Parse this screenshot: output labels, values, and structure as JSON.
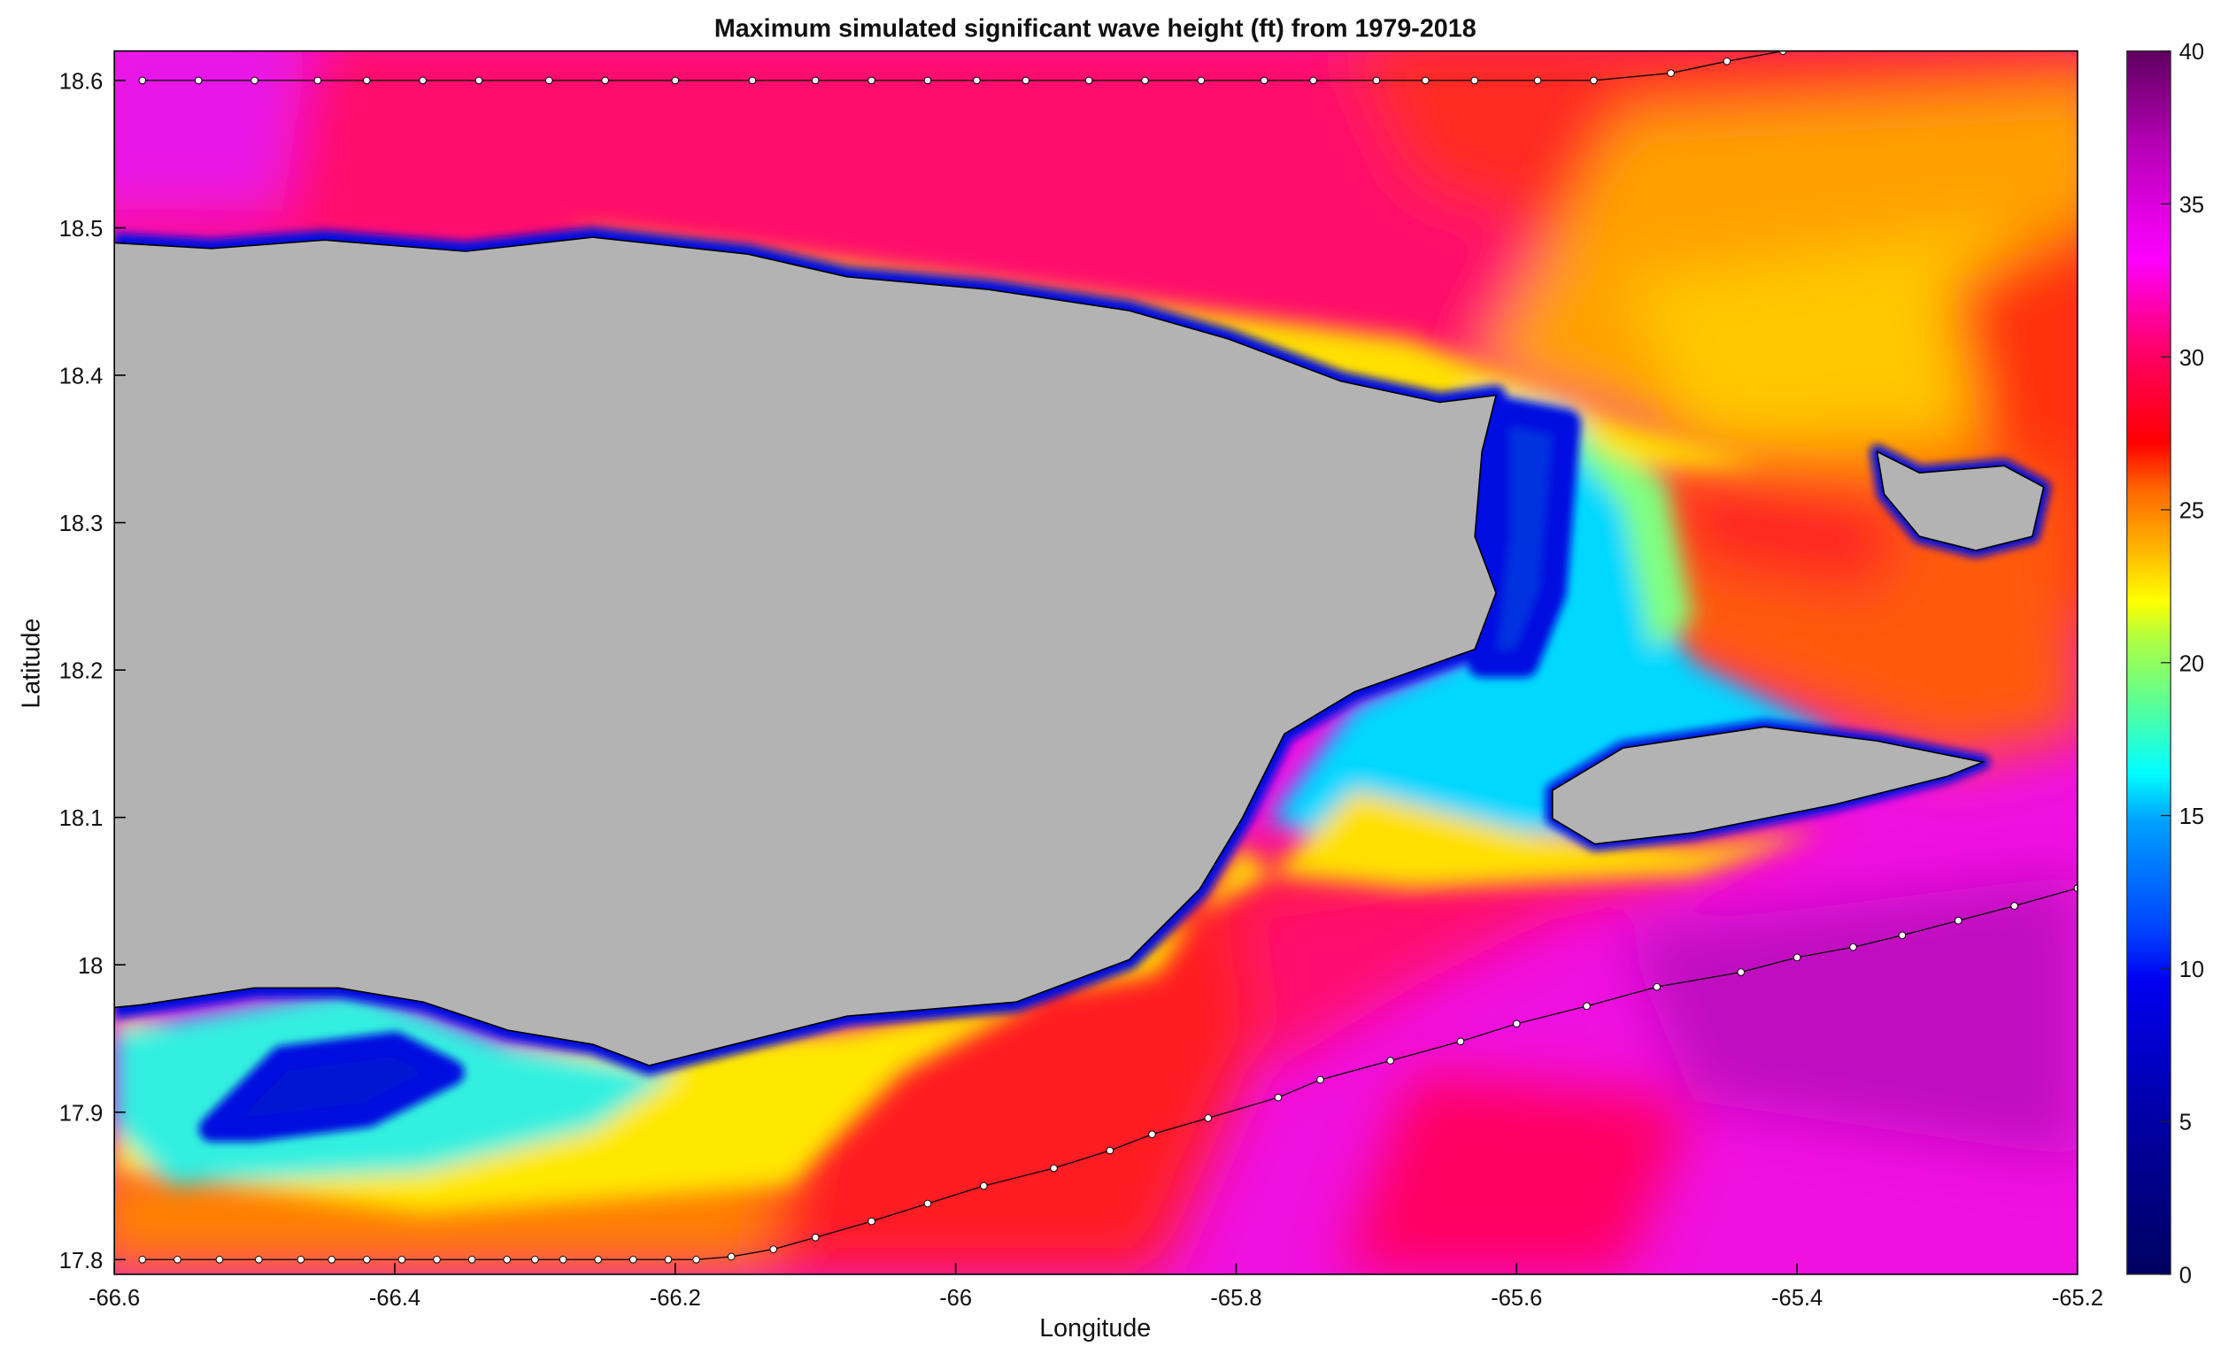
{
  "chart_data": {
    "type": "heatmap",
    "title": "Maximum simulated significant wave height (ft) from 1979-2018",
    "xlabel": "Longitude",
    "ylabel": "Latitude",
    "xlim": [
      -66.6,
      -65.2
    ],
    "ylim": [
      17.79,
      18.62
    ],
    "xticks": [
      "-66.6",
      "-66.4",
      "-66.2",
      "-66",
      "-65.8",
      "-65.6",
      "-65.4",
      "-65.2"
    ],
    "yticks": [
      "17.8",
      "17.9",
      "18",
      "18.1",
      "18.2",
      "18.3",
      "18.4",
      "18.5",
      "18.6"
    ],
    "colorbar": {
      "range": [
        0,
        40
      ],
      "ticks": [
        "0",
        "5",
        "10",
        "15",
        "20",
        "25",
        "30",
        "35",
        "40"
      ],
      "colormap": [
        "#000060",
        "#0000c8",
        "#0000ff",
        "#0060ff",
        "#00ffff",
        "#80ff80",
        "#ffff00",
        "#ff9900",
        "#ff0000",
        "#ff0080",
        "#ff00ff",
        "#c000c0",
        "#600060"
      ]
    },
    "land_color": "#b3b3b3",
    "tracks": [
      {
        "points": [
          [
            -66.58,
            18.6
          ],
          [
            -66.54,
            18.6
          ],
          [
            -66.5,
            18.6
          ],
          [
            -66.455,
            18.6
          ],
          [
            -66.42,
            18.6
          ],
          [
            -66.38,
            18.6
          ],
          [
            -66.34,
            18.6
          ],
          [
            -66.29,
            18.6
          ],
          [
            -66.25,
            18.6
          ],
          [
            -66.2,
            18.6
          ],
          [
            -66.145,
            18.6
          ],
          [
            -66.1,
            18.6
          ],
          [
            -66.06,
            18.6
          ],
          [
            -66.02,
            18.6
          ],
          [
            -65.985,
            18.6
          ],
          [
            -65.95,
            18.6
          ],
          [
            -65.905,
            18.6
          ],
          [
            -65.865,
            18.6
          ],
          [
            -65.825,
            18.6
          ],
          [
            -65.78,
            18.6
          ],
          [
            -65.745,
            18.6
          ],
          [
            -65.7,
            18.6
          ],
          [
            -65.665,
            18.6
          ],
          [
            -65.63,
            18.6
          ],
          [
            -65.585,
            18.6
          ],
          [
            -65.545,
            18.6
          ],
          [
            -65.49,
            18.605
          ],
          [
            -65.45,
            18.613
          ],
          [
            -65.41,
            18.62
          ]
        ]
      },
      {
        "points": [
          [
            -66.58,
            17.8
          ],
          [
            -66.555,
            17.8
          ],
          [
            -66.525,
            17.8
          ],
          [
            -66.497,
            17.8
          ],
          [
            -66.467,
            17.8
          ],
          [
            -66.445,
            17.8
          ],
          [
            -66.42,
            17.8
          ],
          [
            -66.395,
            17.8
          ],
          [
            -66.37,
            17.8
          ],
          [
            -66.345,
            17.8
          ],
          [
            -66.32,
            17.8
          ],
          [
            -66.3,
            17.8
          ],
          [
            -66.28,
            17.8
          ],
          [
            -66.255,
            17.8
          ],
          [
            -66.23,
            17.8
          ],
          [
            -66.205,
            17.8
          ],
          [
            -66.185,
            17.8
          ],
          [
            -66.16,
            17.802
          ],
          [
            -66.13,
            17.807
          ],
          [
            -66.1,
            17.815
          ],
          [
            -66.06,
            17.826
          ],
          [
            -66.02,
            17.838
          ],
          [
            -65.98,
            17.85
          ],
          [
            -65.93,
            17.862
          ],
          [
            -65.89,
            17.874
          ],
          [
            -65.86,
            17.885
          ],
          [
            -65.82,
            17.896
          ],
          [
            -65.77,
            17.91
          ],
          [
            -65.74,
            17.922
          ],
          [
            -65.69,
            17.935
          ],
          [
            -65.64,
            17.948
          ],
          [
            -65.6,
            17.96
          ],
          [
            -65.55,
            17.972
          ],
          [
            -65.5,
            17.985
          ],
          [
            -65.44,
            17.995
          ],
          [
            -65.4,
            18.005
          ],
          [
            -65.36,
            18.012
          ],
          [
            -65.325,
            18.02
          ],
          [
            -65.285,
            18.03
          ],
          [
            -65.245,
            18.04
          ],
          [
            -65.2,
            18.052
          ]
        ]
      }
    ]
  }
}
